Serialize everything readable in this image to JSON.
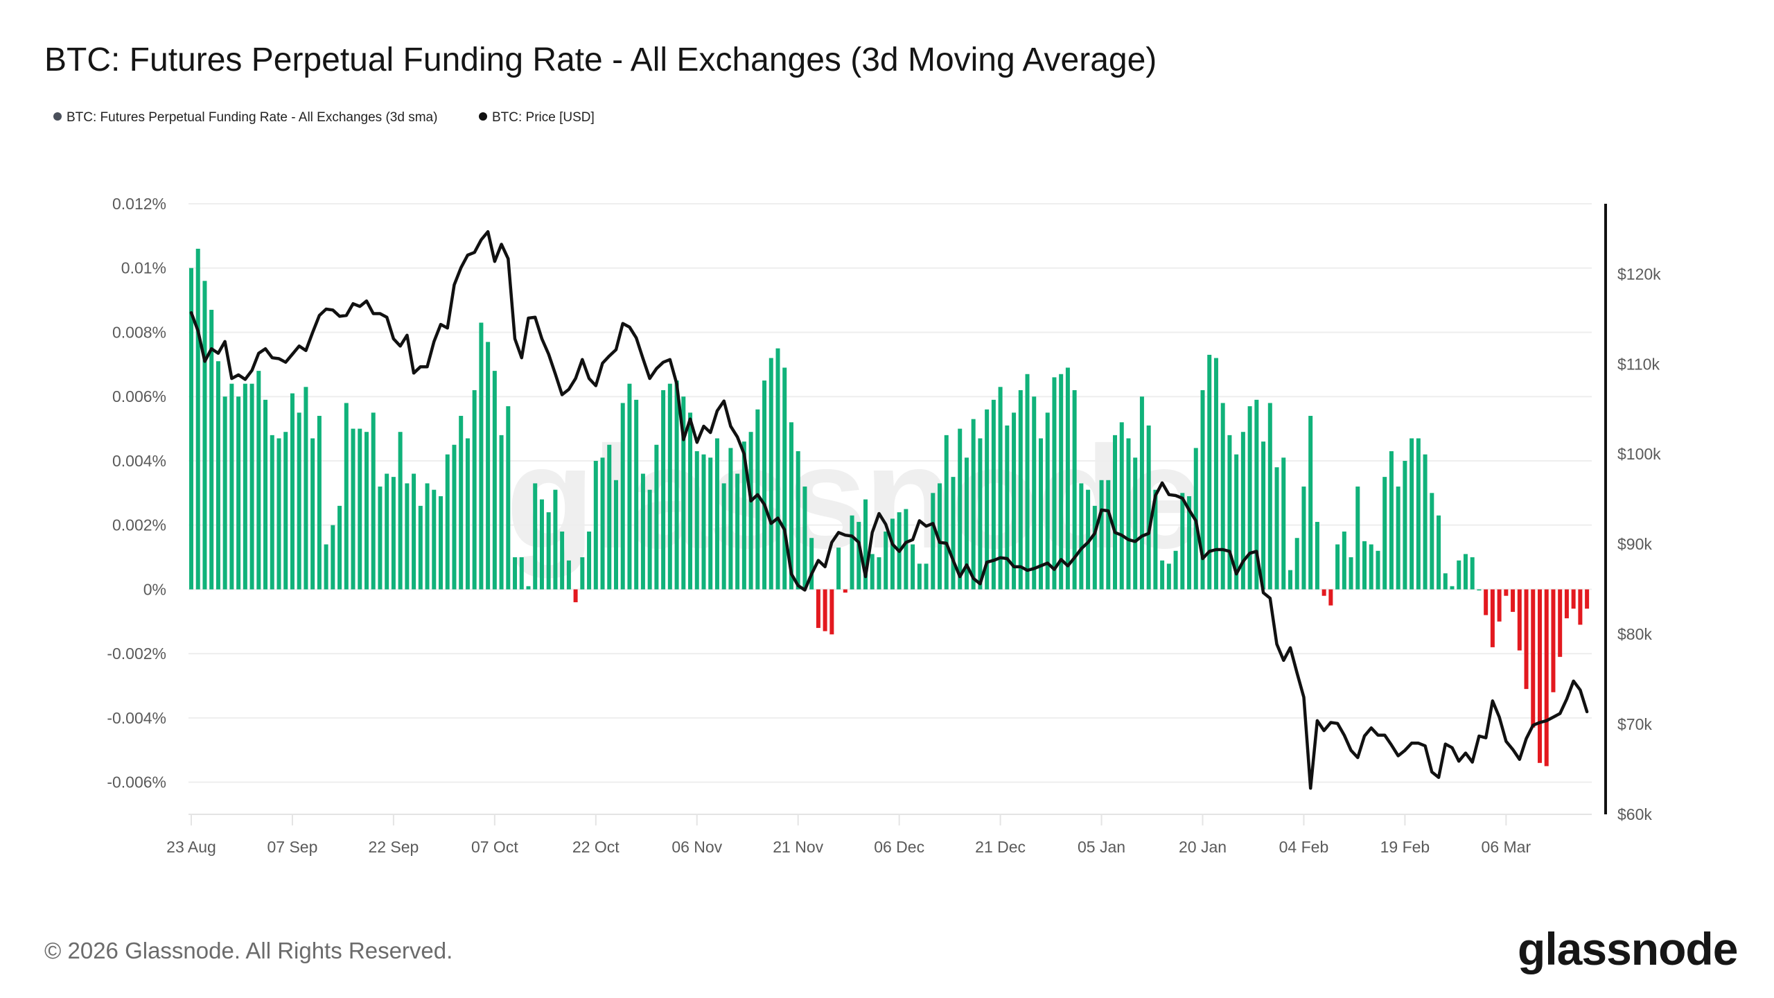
{
  "title": "BTC: Futures Perpetual Funding Rate - All Exchanges (3d Moving Average)",
  "legend": [
    {
      "label": "BTC: Futures Perpetual Funding Rate - All Exchanges (3d sma)",
      "color": "#4a4f5a"
    },
    {
      "label": "BTC: Price [USD]",
      "color": "#111111"
    }
  ],
  "footer": "© 2026 Glassnode. All Rights Reserved.",
  "logo": "glassnode",
  "watermark": "glassnode",
  "colors": {
    "positive": "#10b27a",
    "negative": "#e3191f",
    "price_line": "#111111",
    "grid": "#eeeeee"
  },
  "chart_data": {
    "type": "bar+line",
    "date_range": [
      "2025-08-23",
      "2026-03-18"
    ],
    "interval": "1d",
    "x_tick_labels": [
      "23 Aug",
      "07 Sep",
      "22 Sep",
      "07 Oct",
      "22 Oct",
      "06 Nov",
      "21 Nov",
      "06 Dec",
      "21 Dec",
      "05 Jan",
      "20 Jan",
      "04 Feb",
      "19 Feb",
      "06 Mar"
    ],
    "left_axis": {
      "unit": "%",
      "ylim": [
        -0.007,
        0.012
      ],
      "tick_labels": [
        "0.012%",
        "0.01%",
        "0.008%",
        "0.006%",
        "0.004%",
        "0.002%",
        "0%",
        "-0.002%",
        "-0.004%",
        "-0.006%"
      ],
      "tick_values": [
        0.012,
        0.01,
        0.008,
        0.006,
        0.004,
        0.002,
        0,
        -0.002,
        -0.004,
        -0.006
      ]
    },
    "right_axis": {
      "unit": "USD (thousands)",
      "ylim": [
        60,
        127.8
      ],
      "tick_labels": [
        "$120k",
        "$110k",
        "$100k",
        "$90k",
        "$80k",
        "$70k",
        "$60k"
      ],
      "tick_values": [
        120,
        110,
        100,
        90,
        80,
        70,
        60
      ]
    },
    "grid": true,
    "legend_placement": "top-left",
    "series": [
      {
        "name": "BTC: Futures Perpetual Funding Rate - All Exchanges (3d sma)",
        "type": "bar",
        "unit": "%",
        "values": [
          0.01,
          0.0106,
          0.0096,
          0.0087,
          0.0071,
          0.006,
          0.0064,
          0.006,
          0.0064,
          0.0064,
          0.0068,
          0.0059,
          0.0048,
          0.0047,
          0.0049,
          0.0061,
          0.0055,
          0.0063,
          0.0047,
          0.0054,
          0.0014,
          0.002,
          0.0026,
          0.0058,
          0.005,
          0.005,
          0.0049,
          0.0055,
          0.0032,
          0.0036,
          0.0035,
          0.0049,
          0.0033,
          0.0036,
          0.0026,
          0.0033,
          0.0031,
          0.0029,
          0.0042,
          0.0045,
          0.0054,
          0.0047,
          0.0062,
          0.0083,
          0.0077,
          0.0068,
          0.0048,
          0.0057,
          0.001,
          0.001,
          0.0001,
          0.0033,
          0.0028,
          0.0024,
          0.0031,
          0.0018,
          0.0009,
          -0.0004,
          0.001,
          0.0018,
          0.004,
          0.0041,
          0.0045,
          0.0034,
          0.0058,
          0.0064,
          0.0059,
          0.0036,
          0.0031,
          0.0045,
          0.0062,
          0.0064,
          0.0065,
          0.006,
          0.0055,
          0.0043,
          0.0042,
          0.0041,
          0.0047,
          0.0033,
          0.0044,
          0.0036,
          0.0046,
          0.0049,
          0.0056,
          0.0065,
          0.0072,
          0.0075,
          0.0069,
          0.0052,
          0.0043,
          0.0032,
          0.0016,
          -0.0012,
          -0.0013,
          -0.0014,
          0.0013,
          -0.0001,
          0.0023,
          0.0021,
          0.0028,
          0.0011,
          0.001,
          0.0018,
          0.0022,
          0.0024,
          0.0025,
          0.0014,
          0.0008,
          0.0008,
          0.003,
          0.0033,
          0.0048,
          0.0035,
          0.005,
          0.0041,
          0.0053,
          0.0047,
          0.0056,
          0.0059,
          0.0063,
          0.0051,
          0.0055,
          0.0062,
          0.0067,
          0.006,
          0.0047,
          0.0055,
          0.0066,
          0.0067,
          0.0069,
          0.0062,
          0.0033,
          0.0031,
          0.0026,
          0.0034,
          0.0034,
          0.0048,
          0.0052,
          0.0047,
          0.0041,
          0.006,
          0.0051,
          0.0031,
          0.0009,
          0.0008,
          0.0012,
          0.003,
          0.0029,
          0.0044,
          0.0062,
          0.0073,
          0.0072,
          0.0058,
          0.0048,
          0.0042,
          0.0049,
          0.0057,
          0.0059,
          0.0046,
          0.0058,
          0.0038,
          0.0041,
          0.0006,
          0.0016,
          0.0032,
          0.0054,
          0.0021,
          -0.0002,
          -0.0005,
          0.0014,
          0.0018,
          0.001,
          0.0032,
          0.0015,
          0.0014,
          0.0012,
          0.0035,
          0.0043,
          0.0032,
          0.004,
          0.0047,
          0.0047,
          0.0042,
          0.003,
          0.0023,
          0.0005,
          0.0001,
          0.0009,
          0.0011,
          0.001,
          0.0,
          -0.0008,
          -0.0018,
          -0.001,
          -0.0002,
          -0.0007,
          -0.0019,
          -0.0031,
          -0.0043,
          -0.0054,
          -0.0055,
          -0.0032,
          -0.0021,
          -0.0009,
          -0.0006,
          -0.0011,
          -0.0006
        ]
      },
      {
        "name": "BTC: Price [USD]",
        "type": "line",
        "unit": "USD (thousands)",
        "values": [
          115.7,
          113.7,
          110.3,
          111.7,
          111.2,
          112.5,
          108.4,
          108.8,
          108.3,
          109.3,
          111.2,
          111.7,
          110.7,
          110.6,
          110.2,
          111.1,
          112.0,
          111.5,
          113.5,
          115.4,
          116.1,
          116.0,
          115.3,
          115.4,
          116.7,
          116.4,
          117.0,
          115.6,
          115.6,
          115.2,
          112.8,
          112.0,
          113.2,
          109.0,
          109.7,
          109.7,
          112.5,
          114.4,
          114.0,
          118.8,
          120.7,
          122.1,
          122.4,
          123.8,
          124.7,
          121.4,
          123.3,
          121.7,
          112.8,
          110.7,
          115.1,
          115.2,
          112.8,
          111.1,
          108.9,
          106.6,
          107.2,
          108.4,
          110.5,
          108.4,
          107.6,
          110.1,
          110.9,
          111.6,
          114.5,
          114.1,
          112.9,
          110.6,
          108.4,
          109.5,
          110.2,
          110.5,
          107.8,
          101.6,
          103.9,
          101.3,
          103.1,
          102.4,
          104.8,
          105.9,
          103.1,
          101.9,
          100.0,
          94.8,
          95.5,
          94.4,
          92.3,
          92.9,
          91.6,
          86.7,
          85.4,
          84.9,
          86.7,
          88.2,
          87.5,
          90.2,
          91.3,
          91.0,
          90.9,
          90.2,
          86.4,
          91.3,
          93.4,
          92.2,
          90.0,
          89.2,
          90.2,
          90.5,
          92.6,
          92.0,
          92.3,
          90.2,
          90.1,
          88.2,
          86.4,
          87.7,
          86.2,
          85.6,
          88.0,
          88.2,
          88.5,
          88.4,
          87.5,
          87.5,
          87.1,
          87.3,
          87.6,
          87.9,
          87.2,
          88.3,
          87.6,
          88.5,
          89.5,
          90.2,
          91.2,
          93.8,
          93.7,
          91.3,
          91.0,
          90.5,
          90.3,
          90.9,
          91.2,
          95.4,
          96.8,
          95.5,
          95.4,
          95.1,
          93.8,
          92.6,
          88.4,
          89.2,
          89.4,
          89.4,
          89.2,
          86.7,
          88.1,
          89.0,
          89.2,
          84.6,
          84.0,
          78.9,
          77.1,
          78.5,
          75.7,
          73.0,
          62.9,
          70.4,
          69.3,
          70.2,
          70.1,
          68.8,
          67.1,
          66.3,
          68.7,
          69.6,
          68.8,
          68.8,
          67.7,
          66.5,
          67.1,
          67.9,
          67.9,
          67.6,
          64.7,
          64.1,
          67.8,
          67.4,
          65.9,
          66.8,
          65.8,
          68.7,
          68.5,
          72.6,
          70.8,
          68.1,
          67.2,
          66.1,
          68.4,
          69.9,
          70.2,
          70.4,
          70.8,
          71.2,
          72.8,
          74.8,
          73.8,
          71.4
        ]
      }
    ]
  }
}
